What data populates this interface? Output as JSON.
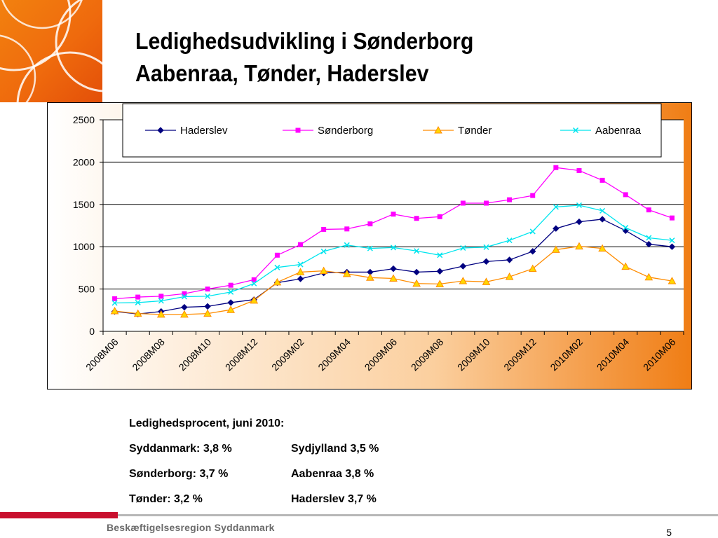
{
  "slide": {
    "title_line1": "Ledighedsudvikling i Sønderborg",
    "title_line2": "Aabenraa, Tønder, Haderslev",
    "org": "Beskæftigelsesregion Syddanmark",
    "page_number": "5",
    "colors": {
      "accent_orange": "#ef6a0d",
      "footer_red": "#c8102e"
    }
  },
  "stats": {
    "heading": "Ledighedsprocent, juni 2010:",
    "rows": [
      {
        "left": "Syddanmark: 3,8 %",
        "right": "Sydjylland 3,5 %"
      },
      {
        "left": "Sønderborg: 3,7 %",
        "right": "Aabenraa 3,8 %"
      },
      {
        "left": "Tønder: 3,2 %",
        "right": "Haderslev 3,7 %"
      }
    ]
  },
  "chart_data": {
    "type": "line",
    "title": "",
    "xlabel": "",
    "ylabel": "",
    "ylim": [
      0,
      2500
    ],
    "yticks": [
      0,
      500,
      1000,
      1500,
      2000,
      2500
    ],
    "grid": true,
    "legend_position": "top",
    "categories": [
      "2008M06",
      "2008M07",
      "2008M08",
      "2008M09",
      "2008M10",
      "2008M11",
      "2008M12",
      "2009M01",
      "2009M02",
      "2009M03",
      "2009M04",
      "2009M05",
      "2009M06",
      "2009M07",
      "2009M08",
      "2009M09",
      "2009M10",
      "2009M11",
      "2009M12",
      "2010M01",
      "2010M02",
      "2010M03",
      "2010M04",
      "2010M05",
      "2010M06"
    ],
    "xtick_labels": [
      "2008M06",
      "2008M08",
      "2008M10",
      "2008M12",
      "2009M02",
      "2009M04",
      "2009M06",
      "2009M08",
      "2009M10",
      "2009M12",
      "2010M02",
      "2010M04",
      "2010M06"
    ],
    "series": [
      {
        "name": "Haderslev",
        "color": "#000080",
        "marker": "diamond",
        "values": [
          235,
          205,
          235,
          285,
          295,
          340,
          375,
          575,
          620,
          690,
          700,
          700,
          740,
          700,
          710,
          770,
          825,
          845,
          945,
          1215,
          1295,
          1325,
          1190,
          1030,
          1000
        ]
      },
      {
        "name": "Sønderborg",
        "color": "#ff00ff",
        "marker": "square",
        "values": [
          385,
          405,
          415,
          445,
          500,
          545,
          610,
          900,
          1025,
          1205,
          1210,
          1270,
          1385,
          1335,
          1355,
          1515,
          1515,
          1555,
          1605,
          1935,
          1900,
          1785,
          1615,
          1435,
          1340
        ]
      },
      {
        "name": "Tønder",
        "color": "#ff8c00",
        "fill": "#ffd700",
        "marker": "triangle",
        "values": [
          240,
          210,
          200,
          200,
          210,
          255,
          365,
          580,
          700,
          715,
          680,
          635,
          625,
          565,
          560,
          595,
          585,
          645,
          740,
          965,
          1005,
          980,
          765,
          640,
          595
        ]
      },
      {
        "name": "Aabenraa",
        "color": "#00e5ee",
        "marker": "x",
        "values": [
          335,
          340,
          360,
          410,
          415,
          465,
          565,
          755,
          790,
          945,
          1020,
          980,
          990,
          950,
          900,
          985,
          995,
          1075,
          1180,
          1470,
          1490,
          1425,
          1225,
          1105,
          1075
        ]
      }
    ]
  }
}
